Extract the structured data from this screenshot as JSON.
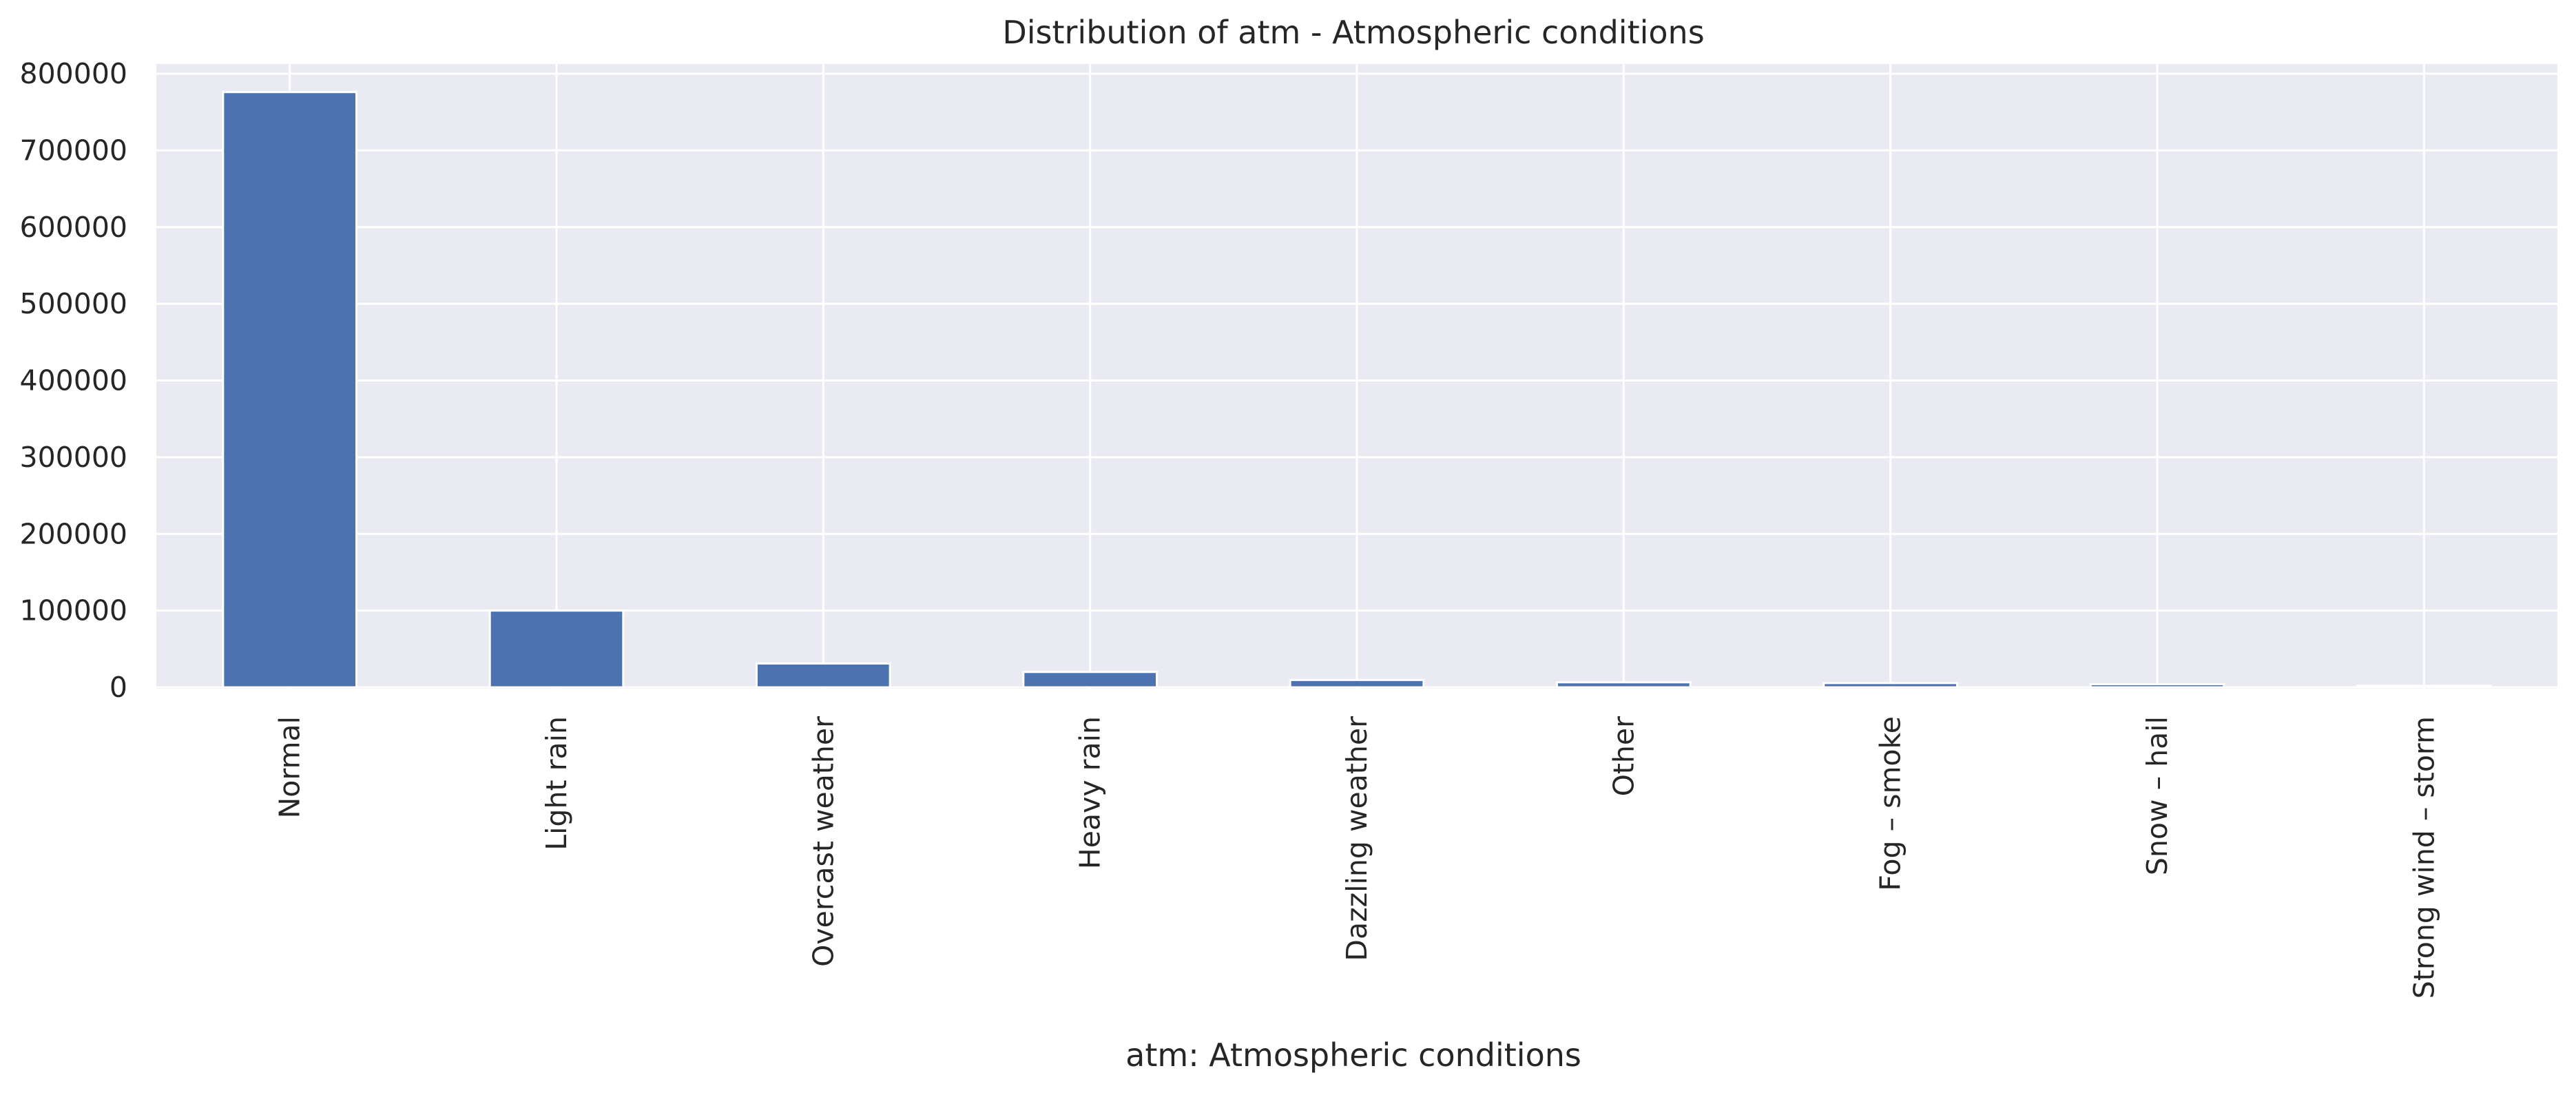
{
  "chart_data": {
    "type": "bar",
    "title": "Distribution of atm - Atmospheric conditions",
    "xlabel": "atm: Atmospheric conditions",
    "ylabel": "",
    "categories": [
      "Normal",
      "Light rain",
      "Overcast weather",
      "Heavy rain",
      "Dazzling weather",
      "Other",
      "Fog – smoke",
      "Snow – hail",
      "Strong wind – storm"
    ],
    "values": [
      776000,
      100000,
      31000,
      20000,
      9500,
      6500,
      5500,
      4000,
      2000
    ],
    "ylim": [
      0,
      810000
    ],
    "yticks": [
      0,
      100000,
      200000,
      300000,
      400000,
      500000,
      600000,
      700000,
      800000
    ],
    "ytick_labels": [
      "0",
      "100000",
      "200000",
      "300000",
      "400000",
      "500000",
      "600000",
      "700000",
      "800000"
    ],
    "grid": true,
    "legend": "none",
    "colors": {
      "bar": "#4c72b0",
      "plot_background": "#eaeaf2",
      "grid": "#ffffff",
      "text": "#262626"
    }
  }
}
